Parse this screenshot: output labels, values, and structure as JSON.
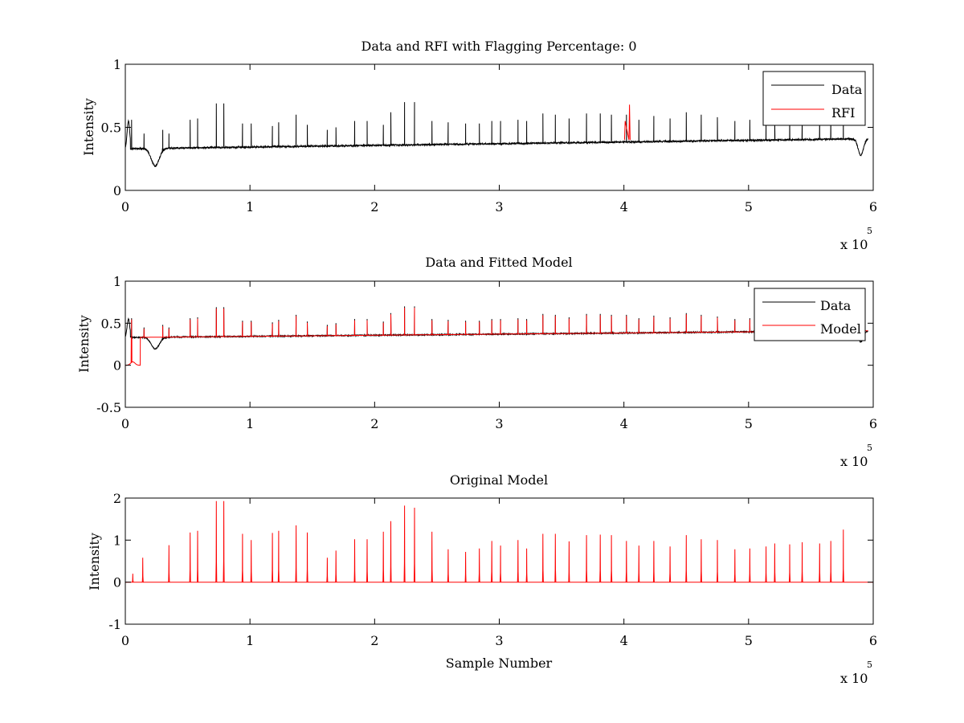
{
  "figure": {
    "background": "#ffffff",
    "colors": {
      "data": "#000000",
      "rfi": "#ff0000",
      "model": "#ff0000",
      "axes": "#000000"
    }
  },
  "chart_data": [
    {
      "type": "line",
      "title": "Data and RFI with Flagging Percentage: 0",
      "xlabel": "",
      "ylabel": "Intensity",
      "xlim": [
        0,
        600000
      ],
      "ylim": [
        0,
        1
      ],
      "xticks": [
        0,
        1,
        2,
        3,
        4,
        5,
        6
      ],
      "xtick_labels": [
        "0",
        "1",
        "2",
        "3",
        "4",
        "5",
        "6"
      ],
      "x_exponent": {
        "base": "x 10",
        "power": "5"
      },
      "yticks": [
        0,
        0.5,
        1
      ],
      "ytick_labels": [
        "0",
        "0.5",
        "1"
      ],
      "grid": false,
      "legend": {
        "placement": "top-right",
        "entries": [
          {
            "label": "Data",
            "color": "#000000"
          },
          {
            "label": "RFI",
            "color": "#ff0000"
          }
        ]
      },
      "series": [
        {
          "name": "Data",
          "color": "#000000",
          "kind": "data",
          "baseline_start": 0.33,
          "baseline_end": 0.41,
          "noise": 0.006,
          "dip_scale": 1.0
        },
        {
          "name": "RFI",
          "color": "#ff0000",
          "kind": "rfi",
          "points": [
            [
              400500,
              0.4
            ],
            [
              401000,
              0.55
            ],
            [
              404000,
              0.4
            ],
            [
              404500,
              0.68
            ],
            [
              405000,
              0.4
            ]
          ]
        }
      ],
      "peaks": [
        {
          "x": 5000,
          "y": 0.56
        },
        {
          "x": 15000,
          "y": 0.45
        },
        {
          "x": 30000,
          "y": 0.48
        },
        {
          "x": 35000,
          "y": 0.45
        },
        {
          "x": 52000,
          "y": 0.56
        },
        {
          "x": 58000,
          "y": 0.57
        },
        {
          "x": 73000,
          "y": 0.69
        },
        {
          "x": 79000,
          "y": 0.69
        },
        {
          "x": 94000,
          "y": 0.53
        },
        {
          "x": 101000,
          "y": 0.53
        },
        {
          "x": 118000,
          "y": 0.51
        },
        {
          "x": 123000,
          "y": 0.54
        },
        {
          "x": 137000,
          "y": 0.6
        },
        {
          "x": 146000,
          "y": 0.52
        },
        {
          "x": 162000,
          "y": 0.48
        },
        {
          "x": 169000,
          "y": 0.5
        },
        {
          "x": 184000,
          "y": 0.55
        },
        {
          "x": 194000,
          "y": 0.55
        },
        {
          "x": 207000,
          "y": 0.52
        },
        {
          "x": 213000,
          "y": 0.62
        },
        {
          "x": 224000,
          "y": 0.7
        },
        {
          "x": 232000,
          "y": 0.7
        },
        {
          "x": 246000,
          "y": 0.55
        },
        {
          "x": 259000,
          "y": 0.54
        },
        {
          "x": 273000,
          "y": 0.53
        },
        {
          "x": 284000,
          "y": 0.53
        },
        {
          "x": 294000,
          "y": 0.55
        },
        {
          "x": 301000,
          "y": 0.55
        },
        {
          "x": 315000,
          "y": 0.56
        },
        {
          "x": 322000,
          "y": 0.55
        },
        {
          "x": 335000,
          "y": 0.61
        },
        {
          "x": 345000,
          "y": 0.6
        },
        {
          "x": 356000,
          "y": 0.57
        },
        {
          "x": 370000,
          "y": 0.61
        },
        {
          "x": 381000,
          "y": 0.61
        },
        {
          "x": 390000,
          "y": 0.6
        },
        {
          "x": 402000,
          "y": 0.6
        },
        {
          "x": 412000,
          "y": 0.56
        },
        {
          "x": 424000,
          "y": 0.59
        },
        {
          "x": 437000,
          "y": 0.57
        },
        {
          "x": 450000,
          "y": 0.62
        },
        {
          "x": 462000,
          "y": 0.6
        },
        {
          "x": 475000,
          "y": 0.58
        },
        {
          "x": 489000,
          "y": 0.55
        },
        {
          "x": 501000,
          "y": 0.56
        },
        {
          "x": 514000,
          "y": 0.55
        },
        {
          "x": 521000,
          "y": 0.56
        },
        {
          "x": 533000,
          "y": 0.58
        },
        {
          "x": 543000,
          "y": 0.57
        },
        {
          "x": 557000,
          "y": 0.58
        },
        {
          "x": 566000,
          "y": 0.57
        },
        {
          "x": 576000,
          "y": 0.6
        }
      ],
      "dips": [
        {
          "x": 3000,
          "depth": 0.0,
          "width": 0
        },
        {
          "x": 24000,
          "depth": 0.14,
          "width": 4500
        },
        {
          "x": 590000,
          "depth": 0.13,
          "width": 3000
        }
      ]
    },
    {
      "type": "line",
      "title": "Data and Fitted Model",
      "xlabel": "",
      "ylabel": "Intensity",
      "xlim": [
        0,
        600000
      ],
      "ylim": [
        -0.5,
        1
      ],
      "xticks": [
        0,
        1,
        2,
        3,
        4,
        5,
        6
      ],
      "xtick_labels": [
        "0",
        "1",
        "2",
        "3",
        "4",
        "5",
        "6"
      ],
      "x_exponent": {
        "base": "x 10",
        "power": "5"
      },
      "yticks": [
        -0.5,
        0,
        0.5,
        1
      ],
      "ytick_labels": [
        "-0.5",
        "0",
        "0.5",
        "1"
      ],
      "grid": false,
      "legend": {
        "placement": "top-right",
        "entries": [
          {
            "label": "Data",
            "color": "#000000"
          },
          {
            "label": "Model",
            "color": "#ff0000"
          }
        ]
      },
      "series": [
        {
          "name": "Data",
          "color": "#000000",
          "kind": "data",
          "baseline_start": 0.33,
          "baseline_end": 0.41,
          "noise": 0.006,
          "dip_scale": 1.0
        },
        {
          "name": "Model",
          "color": "#ff0000",
          "kind": "model",
          "baseline_start": 0.33,
          "baseline_end": 0.41,
          "early_offset": 0.0,
          "early_end": 12000
        }
      ],
      "peaks": "same-as-panel-1",
      "dips": "same-as-panel-1"
    },
    {
      "type": "line",
      "title": "Original Model",
      "xlabel": "Sample Number",
      "ylabel": "Intensity",
      "xlim": [
        0,
        600000
      ],
      "ylim": [
        -1,
        2
      ],
      "xticks": [
        0,
        1,
        2,
        3,
        4,
        5,
        6
      ],
      "xtick_labels": [
        "0",
        "1",
        "2",
        "3",
        "4",
        "5",
        "6"
      ],
      "x_exponent": {
        "base": "x 10",
        "power": "5"
      },
      "yticks": [
        -1,
        0,
        1,
        2
      ],
      "ytick_labels": [
        "-1",
        "0",
        "1",
        "2"
      ],
      "grid": false,
      "series": [
        {
          "name": "",
          "color": "#ff0000",
          "kind": "original",
          "xmax": 580000
        }
      ],
      "peaks": [
        {
          "x": 6000,
          "y": 0.2
        },
        {
          "x": 14000,
          "y": 0.58
        },
        {
          "x": 35000,
          "y": 0.88
        },
        {
          "x": 52000,
          "y": 1.18
        },
        {
          "x": 58000,
          "y": 1.22
        },
        {
          "x": 73000,
          "y": 1.93
        },
        {
          "x": 79000,
          "y": 1.93
        },
        {
          "x": 94000,
          "y": 1.15
        },
        {
          "x": 101000,
          "y": 1.0
        },
        {
          "x": 118000,
          "y": 1.17
        },
        {
          "x": 123000,
          "y": 1.22
        },
        {
          "x": 137000,
          "y": 1.35
        },
        {
          "x": 146000,
          "y": 1.18
        },
        {
          "x": 162000,
          "y": 0.58
        },
        {
          "x": 169000,
          "y": 0.75
        },
        {
          "x": 184000,
          "y": 1.02
        },
        {
          "x": 194000,
          "y": 1.02
        },
        {
          "x": 207000,
          "y": 1.2
        },
        {
          "x": 213000,
          "y": 1.45
        },
        {
          "x": 224000,
          "y": 1.82
        },
        {
          "x": 232000,
          "y": 1.77
        },
        {
          "x": 246000,
          "y": 1.2
        },
        {
          "x": 259000,
          "y": 0.78
        },
        {
          "x": 273000,
          "y": 0.72
        },
        {
          "x": 284000,
          "y": 0.8
        },
        {
          "x": 294000,
          "y": 0.98
        },
        {
          "x": 301000,
          "y": 0.87
        },
        {
          "x": 315000,
          "y": 1.0
        },
        {
          "x": 322000,
          "y": 0.8
        },
        {
          "x": 335000,
          "y": 1.15
        },
        {
          "x": 345000,
          "y": 1.15
        },
        {
          "x": 356000,
          "y": 0.97
        },
        {
          "x": 370000,
          "y": 1.12
        },
        {
          "x": 381000,
          "y": 1.13
        },
        {
          "x": 390000,
          "y": 1.12
        },
        {
          "x": 402000,
          "y": 0.98
        },
        {
          "x": 412000,
          "y": 0.87
        },
        {
          "x": 424000,
          "y": 0.98
        },
        {
          "x": 437000,
          "y": 0.85
        },
        {
          "x": 450000,
          "y": 1.12
        },
        {
          "x": 462000,
          "y": 1.02
        },
        {
          "x": 475000,
          "y": 1.0
        },
        {
          "x": 489000,
          "y": 0.78
        },
        {
          "x": 501000,
          "y": 0.8
        },
        {
          "x": 514000,
          "y": 0.85
        },
        {
          "x": 521000,
          "y": 0.92
        },
        {
          "x": 533000,
          "y": 0.9
        },
        {
          "x": 543000,
          "y": 0.95
        },
        {
          "x": 557000,
          "y": 0.92
        },
        {
          "x": 566000,
          "y": 0.98
        },
        {
          "x": 576000,
          "y": 1.25
        }
      ]
    }
  ]
}
